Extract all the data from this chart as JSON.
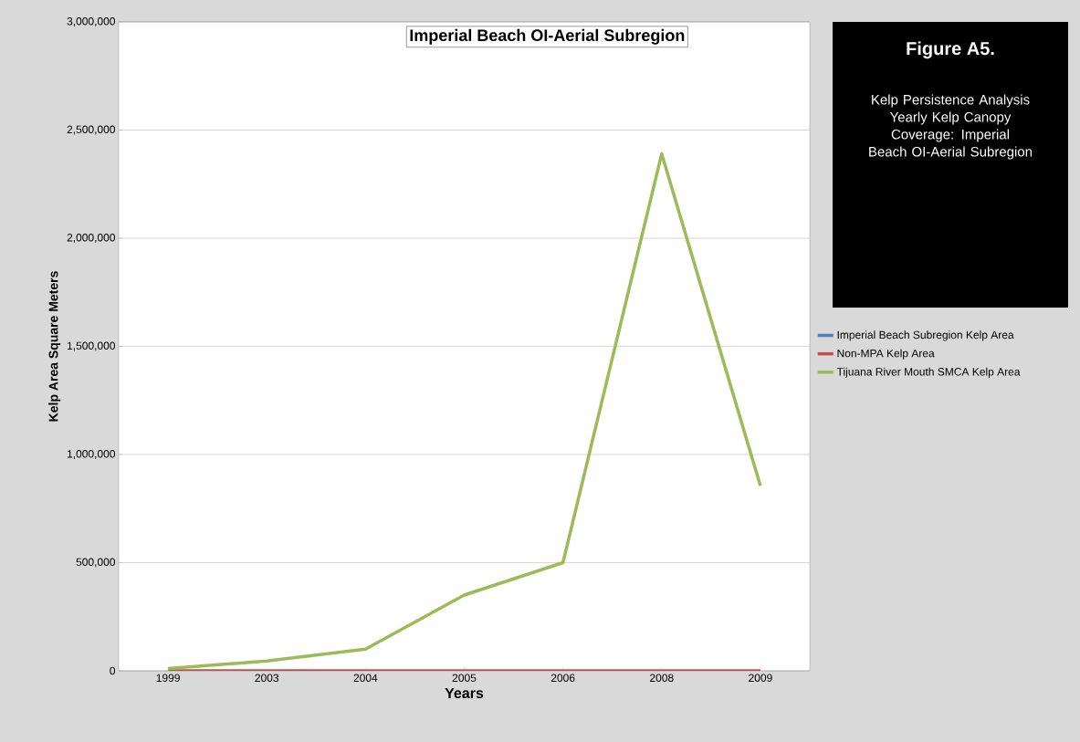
{
  "chart_data": {
    "type": "line",
    "title": "Imperial Beach OI-Aerial Subregion",
    "xlabel": "Years",
    "ylabel": "Kelp Area Square Meters",
    "annotations": [
      "**Figure A5.**",
      "Kelp Persistence Analysis Yearly Kelp Canopy Coverage: Imperial Beach OI-Aerial Subregion"
    ],
    "categories": [
      "1999",
      "2003",
      "2004",
      "2005",
      "2006",
      "2008",
      "2009"
    ],
    "series": [
      {
        "name": "Imperial Beach Subregion Kelp Area",
        "color": "#4f81bd",
        "values": [
          null,
          null,
          null,
          null,
          null,
          null,
          null
        ]
      },
      {
        "name": "Non-MPA Kelp Area",
        "color": "#c0504d",
        "values": [
          0,
          0,
          0,
          0,
          0,
          0,
          0
        ]
      },
      {
        "name": "Tijuana River Mouth SMCA Kelp Area",
        "color": "#9bbb59",
        "values": [
          10000,
          45000,
          100000,
          350000,
          500000,
          2390000,
          855000
        ]
      }
    ],
    "ylim": [
      0,
      3000000
    ],
    "yticks": [
      {
        "value": 0,
        "label": "0"
      },
      {
        "value": 500000,
        "label": "500,000"
      },
      {
        "value": 1000000,
        "label": "1,000,000"
      },
      {
        "value": 1500000,
        "label": "1,500,000"
      },
      {
        "value": 2000000,
        "label": "2,000,000"
      },
      {
        "value": 2500000,
        "label": "2,500,000"
      },
      {
        "value": 3000000,
        "label": "3,000,000"
      }
    ],
    "grid": "y",
    "legend": "right",
    "marker": "none",
    "line_style": "solid"
  }
}
